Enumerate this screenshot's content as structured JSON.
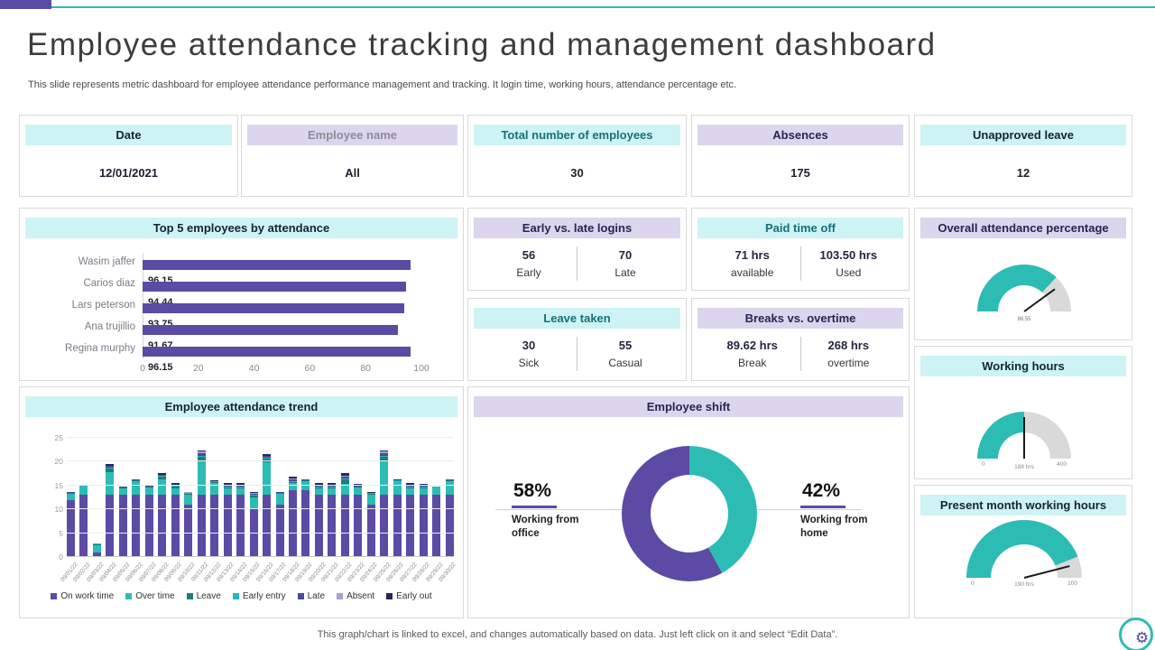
{
  "slide": {
    "title": "Employee attendance tracking and management dashboard",
    "subtitle": "This slide represents metric dashboard for employee attendance performance management and tracking. It login time, working hours, attendance percentage etc.",
    "footer": "This graph/chart is linked to excel, and changes automatically based on data. Just left click on it and select “Edit Data”."
  },
  "icons": {
    "gear": "⚙"
  },
  "colors": {
    "accent_purple": "#5B4BA5",
    "accent_teal": "#2CBCB4",
    "header_cyan": "#CDF3F4",
    "header_lavender": "#DBD5ED",
    "gauge_gray": "#D9D9D9",
    "card_border": "#D9D9D9"
  },
  "kpi_cards": [
    {
      "label": "Date",
      "value": "12/01/2021"
    },
    {
      "label": "Employee name",
      "value": "All"
    },
    {
      "label": "Total number of employees",
      "value": "30"
    },
    {
      "label": "Absences",
      "value": "175"
    },
    {
      "label": "Unapproved leave",
      "value": "12"
    }
  ],
  "split_cards": [
    {
      "title": "Early vs. late logins",
      "left": {
        "value": "56",
        "label": "Early"
      },
      "right": {
        "value": "70",
        "label": "Late"
      }
    },
    {
      "title": "Paid time off",
      "left": {
        "value": "71 hrs",
        "label": "available"
      },
      "right": {
        "value": "103.50 hrs",
        "label": "Used"
      }
    },
    {
      "title": "Leave taken",
      "left": {
        "value": "30",
        "label": "Sick"
      },
      "right": {
        "value": "55",
        "label": "Casual"
      }
    },
    {
      "title": "Breaks vs. overtime",
      "left": {
        "value": "89.62 hrs",
        "label": "Break"
      },
      "right": {
        "value": "268 hrs",
        "label": "overtime"
      }
    }
  ],
  "chart_data": [
    {
      "id": "top5-attendance",
      "type": "bar",
      "orientation": "horizontal",
      "title": "Top 5 employees by attendance",
      "categories": [
        "Wasim jaffer",
        "Carios diaz",
        "Lars peterson",
        "Ana trujillio",
        "Regina murphy"
      ],
      "values": [
        96.15,
        94.44,
        93.75,
        91.67,
        96.15
      ],
      "value_labels": [
        "96.15",
        "94.44",
        "93.75",
        "91.67",
        "96.15"
      ],
      "xlim": [
        0,
        100
      ],
      "xticks": [
        0,
        20,
        40,
        60,
        80,
        100
      ],
      "bar_color": "#5B4BA5",
      "grid": false
    },
    {
      "id": "attendance-trend",
      "type": "bar",
      "stacked": true,
      "title": "Employee attendance trend",
      "x": [
        "09/01/22",
        "09/02/22",
        "09/03/22",
        "09/04/22",
        "09/05/22",
        "09/06/22",
        "09/07/22",
        "09/08/22",
        "09/09/22",
        "09/10/22",
        "09/11/22",
        "09/12/22",
        "09/13/22",
        "09/14/22",
        "09/15/22",
        "09/16/22",
        "09/17/22",
        "09/18/22",
        "09/19/22",
        "09/20/22",
        "09/21/22",
        "09/22/22",
        "09/23/22",
        "09/24/22",
        "09/25/22",
        "09/26/22",
        "09/27/22",
        "09/28/22",
        "09/29/22",
        "09/30/22"
      ],
      "ylim": [
        0,
        25
      ],
      "yticks": [
        0,
        5,
        10,
        15,
        20,
        25
      ],
      "legend_position": "bottom",
      "series": [
        {
          "name": "On work time",
          "color": "#5B4BA5",
          "values": [
            12,
            13,
            1,
            13,
            13,
            13,
            13,
            13,
            13,
            11,
            13,
            13,
            13,
            13,
            10,
            13,
            11,
            14,
            14,
            13,
            13,
            13,
            13,
            11,
            13,
            13,
            13,
            13,
            13,
            13
          ]
        },
        {
          "name": "Over time",
          "color": "#2CBCB4",
          "values": [
            1.2,
            1.9,
            1.5,
            4.8,
            1.4,
            3.0,
            1.5,
            3.3,
            1.4,
            2.0,
            7.3,
            2.6,
            1.4,
            1.4,
            2.5,
            6.8,
            2.2,
            1.5,
            2.0,
            1.4,
            1.4,
            2.4,
            1.5,
            2.1,
            7.3,
            2.9,
            1.4,
            1.4,
            1.5,
            3.0
          ]
        },
        {
          "name": "Leave",
          "color": "#1B7E7A",
          "values": [
            0.2,
            0.1,
            0.2,
            0.8,
            0.1,
            0.1,
            0.2,
            0.5,
            0.4,
            0.3,
            0.7,
            0.2,
            0.2,
            0.2,
            0.4,
            0.8,
            0.2,
            0.3,
            0.1,
            0.2,
            0.2,
            0.8,
            0.2,
            0.2,
            0.7,
            0.1,
            0.2,
            0.2,
            0.1,
            0.1
          ]
        },
        {
          "name": "Early entry",
          "color": "#22B7C8",
          "values": [
            0.1,
            0.1,
            0.1,
            0.2,
            0.1,
            0.1,
            0.1,
            0.2,
            0.1,
            0.1,
            0.3,
            0.1,
            0.2,
            0.2,
            0.2,
            0.3,
            0.1,
            0.2,
            0.1,
            0.2,
            0.2,
            0.3,
            0.1,
            0.1,
            0.3,
            0.1,
            0.2,
            0.2,
            0.1,
            0.1
          ]
        },
        {
          "name": "Late",
          "color": "#4C4A9C",
          "values": [
            0.1,
            0.1,
            0,
            0.3,
            0.1,
            0.1,
            0.1,
            0.2,
            0.2,
            0.1,
            0.4,
            0.1,
            0.2,
            0.2,
            0.2,
            0.3,
            0.1,
            0.3,
            0.1,
            0.2,
            0.2,
            0.4,
            0.2,
            0.1,
            0.4,
            0.1,
            0.2,
            0.2,
            0.1,
            0.1
          ]
        },
        {
          "name": "Absent",
          "color": "#A7A2CE",
          "values": [
            0,
            0,
            0,
            0.1,
            0,
            0,
            0,
            0.1,
            0.1,
            0.1,
            0.4,
            0,
            0.1,
            0.1,
            0.1,
            0.1,
            0,
            0.2,
            0,
            0.1,
            0.1,
            0.2,
            0.1,
            0,
            0.4,
            0,
            0.1,
            0.1,
            0,
            0
          ]
        },
        {
          "name": "Early out",
          "color": "#26265C",
          "values": [
            0.1,
            0,
            0,
            0.4,
            0.1,
            0,
            0.1,
            0.4,
            0.3,
            0.1,
            0.3,
            0.2,
            0.4,
            0.4,
            0.3,
            0.3,
            0.1,
            0.4,
            0,
            0.4,
            0.4,
            0.6,
            0.3,
            0.1,
            0.3,
            0.1,
            0.4,
            0.3,
            0,
            0
          ]
        }
      ]
    },
    {
      "id": "employee-shift",
      "type": "pie",
      "donut": true,
      "title": "Employee shift",
      "slices": [
        {
          "label": "Working from home",
          "pct": 42,
          "color": "#2CBCB4"
        },
        {
          "label": "Working from office",
          "pct": 58,
          "color": "#5B4BA5"
        }
      ],
      "callouts": {
        "left": {
          "pct_label": "58%",
          "label": "Working from office"
        },
        "right": {
          "pct_label": "42%",
          "label": "Working from home"
        }
      }
    },
    {
      "id": "overall-attendance-gauge",
      "type": "gauge",
      "title": "Overall attendance percentage",
      "value_label": "86.55",
      "fill_fraction": 0.74,
      "needle_fraction": 0.8,
      "color": "#2CBCB4"
    },
    {
      "id": "working-hours-gauge",
      "type": "gauge",
      "title": "Working hours",
      "min_label": "0",
      "center_label": "188 hrs",
      "max_label": "400",
      "fill_fraction": 0.5,
      "needle_fraction": 0.5,
      "color": "#2CBCB4"
    },
    {
      "id": "present-month-gauge",
      "type": "gauge",
      "title": "Present month working hours",
      "min_label": "0",
      "center_label": "190 hrs",
      "max_label": "200",
      "fill_fraction": 0.88,
      "needle_fraction": 0.92,
      "color": "#2CBCB4"
    }
  ]
}
